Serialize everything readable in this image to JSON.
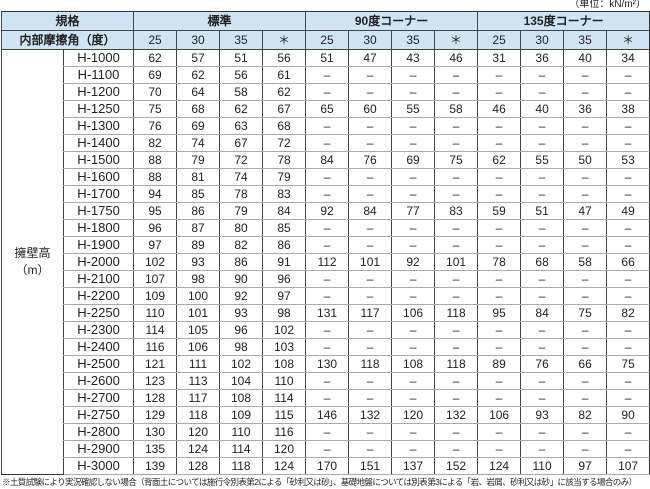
{
  "unit": "（単位：kN/m²）",
  "header": {
    "spec": "規格",
    "angle": "内部摩擦角（度）",
    "groups": [
      "標準",
      "90度コーナー",
      "135度コーナー"
    ],
    "angles": [
      "25",
      "30",
      "35",
      "＊",
      "25",
      "30",
      "35",
      "＊",
      "25",
      "30",
      "35",
      "＊"
    ]
  },
  "row_label": "擁壁高\n（m）",
  "rows": [
    [
      "H-1000",
      "62",
      "57",
      "51",
      "56",
      "51",
      "47",
      "43",
      "46",
      "31",
      "36",
      "40",
      "34"
    ],
    [
      "H-1100",
      "69",
      "62",
      "56",
      "61",
      "–",
      "–",
      "–",
      "–",
      "–",
      "–",
      "–",
      "–"
    ],
    [
      "H-1200",
      "70",
      "64",
      "58",
      "62",
      "–",
      "–",
      "–",
      "–",
      "–",
      "–",
      "–",
      "–"
    ],
    [
      "H-1250",
      "75",
      "68",
      "62",
      "67",
      "65",
      "60",
      "55",
      "58",
      "46",
      "40",
      "36",
      "38"
    ],
    [
      "H-1300",
      "76",
      "69",
      "63",
      "68",
      "–",
      "–",
      "–",
      "–",
      "–",
      "–",
      "–",
      "–"
    ],
    [
      "H-1400",
      "82",
      "74",
      "67",
      "72",
      "–",
      "–",
      "–",
      "–",
      "–",
      "–",
      "–",
      "–"
    ],
    [
      "H-1500",
      "88",
      "79",
      "72",
      "78",
      "84",
      "76",
      "69",
      "75",
      "62",
      "55",
      "50",
      "53"
    ],
    [
      "H-1600",
      "88",
      "81",
      "74",
      "79",
      "–",
      "–",
      "–",
      "–",
      "–",
      "–",
      "–",
      "–"
    ],
    [
      "H-1700",
      "94",
      "85",
      "78",
      "83",
      "–",
      "–",
      "–",
      "–",
      "–",
      "–",
      "–",
      "–"
    ],
    [
      "H-1750",
      "95",
      "86",
      "79",
      "84",
      "92",
      "84",
      "77",
      "83",
      "59",
      "51",
      "47",
      "49"
    ],
    [
      "H-1800",
      "96",
      "87",
      "80",
      "85",
      "–",
      "–",
      "–",
      "–",
      "–",
      "–",
      "–",
      "–"
    ],
    [
      "H-1900",
      "97",
      "89",
      "82",
      "86",
      "–",
      "–",
      "–",
      "–",
      "–",
      "–",
      "–",
      "–"
    ],
    [
      "H-2000",
      "102",
      "93",
      "86",
      "91",
      "112",
      "101",
      "92",
      "101",
      "78",
      "68",
      "58",
      "66"
    ],
    [
      "H-2100",
      "107",
      "98",
      "90",
      "96",
      "–",
      "–",
      "–",
      "–",
      "–",
      "–",
      "–",
      "–"
    ],
    [
      "H-2200",
      "109",
      "100",
      "92",
      "97",
      "–",
      "–",
      "–",
      "–",
      "–",
      "–",
      "–",
      "–"
    ],
    [
      "H-2250",
      "110",
      "101",
      "93",
      "98",
      "131",
      "117",
      "106",
      "118",
      "95",
      "84",
      "75",
      "82"
    ],
    [
      "H-2300",
      "114",
      "105",
      "96",
      "102",
      "–",
      "–",
      "–",
      "–",
      "–",
      "–",
      "–",
      "–"
    ],
    [
      "H-2400",
      "116",
      "106",
      "98",
      "103",
      "–",
      "–",
      "–",
      "–",
      "–",
      "–",
      "–",
      "–"
    ],
    [
      "H-2500",
      "121",
      "111",
      "102",
      "108",
      "130",
      "118",
      "108",
      "118",
      "89",
      "76",
      "66",
      "75"
    ],
    [
      "H-2600",
      "123",
      "113",
      "104",
      "110",
      "–",
      "–",
      "–",
      "–",
      "–",
      "–",
      "–",
      "–"
    ],
    [
      "H-2700",
      "128",
      "117",
      "108",
      "114",
      "–",
      "–",
      "–",
      "–",
      "–",
      "–",
      "–",
      "–"
    ],
    [
      "H-2750",
      "129",
      "118",
      "109",
      "115",
      "146",
      "132",
      "120",
      "132",
      "106",
      "93",
      "82",
      "90"
    ],
    [
      "H-2800",
      "130",
      "120",
      "110",
      "116",
      "–",
      "–",
      "–",
      "–",
      "–",
      "–",
      "–",
      "–"
    ],
    [
      "H-2900",
      "135",
      "124",
      "114",
      "120",
      "–",
      "–",
      "–",
      "–",
      "–",
      "–",
      "–",
      "–"
    ],
    [
      "H-3000",
      "139",
      "128",
      "118",
      "124",
      "170",
      "151",
      "137",
      "152",
      "124",
      "110",
      "97",
      "107"
    ]
  ],
  "footnote": "※土質試験により実況確認しない場合（背面土については施行令別表第2による「砂利又は砂」、基礎地盤については別表第3による「岩、岩屑、砂利又は砂」に該当する場合のみ）"
}
